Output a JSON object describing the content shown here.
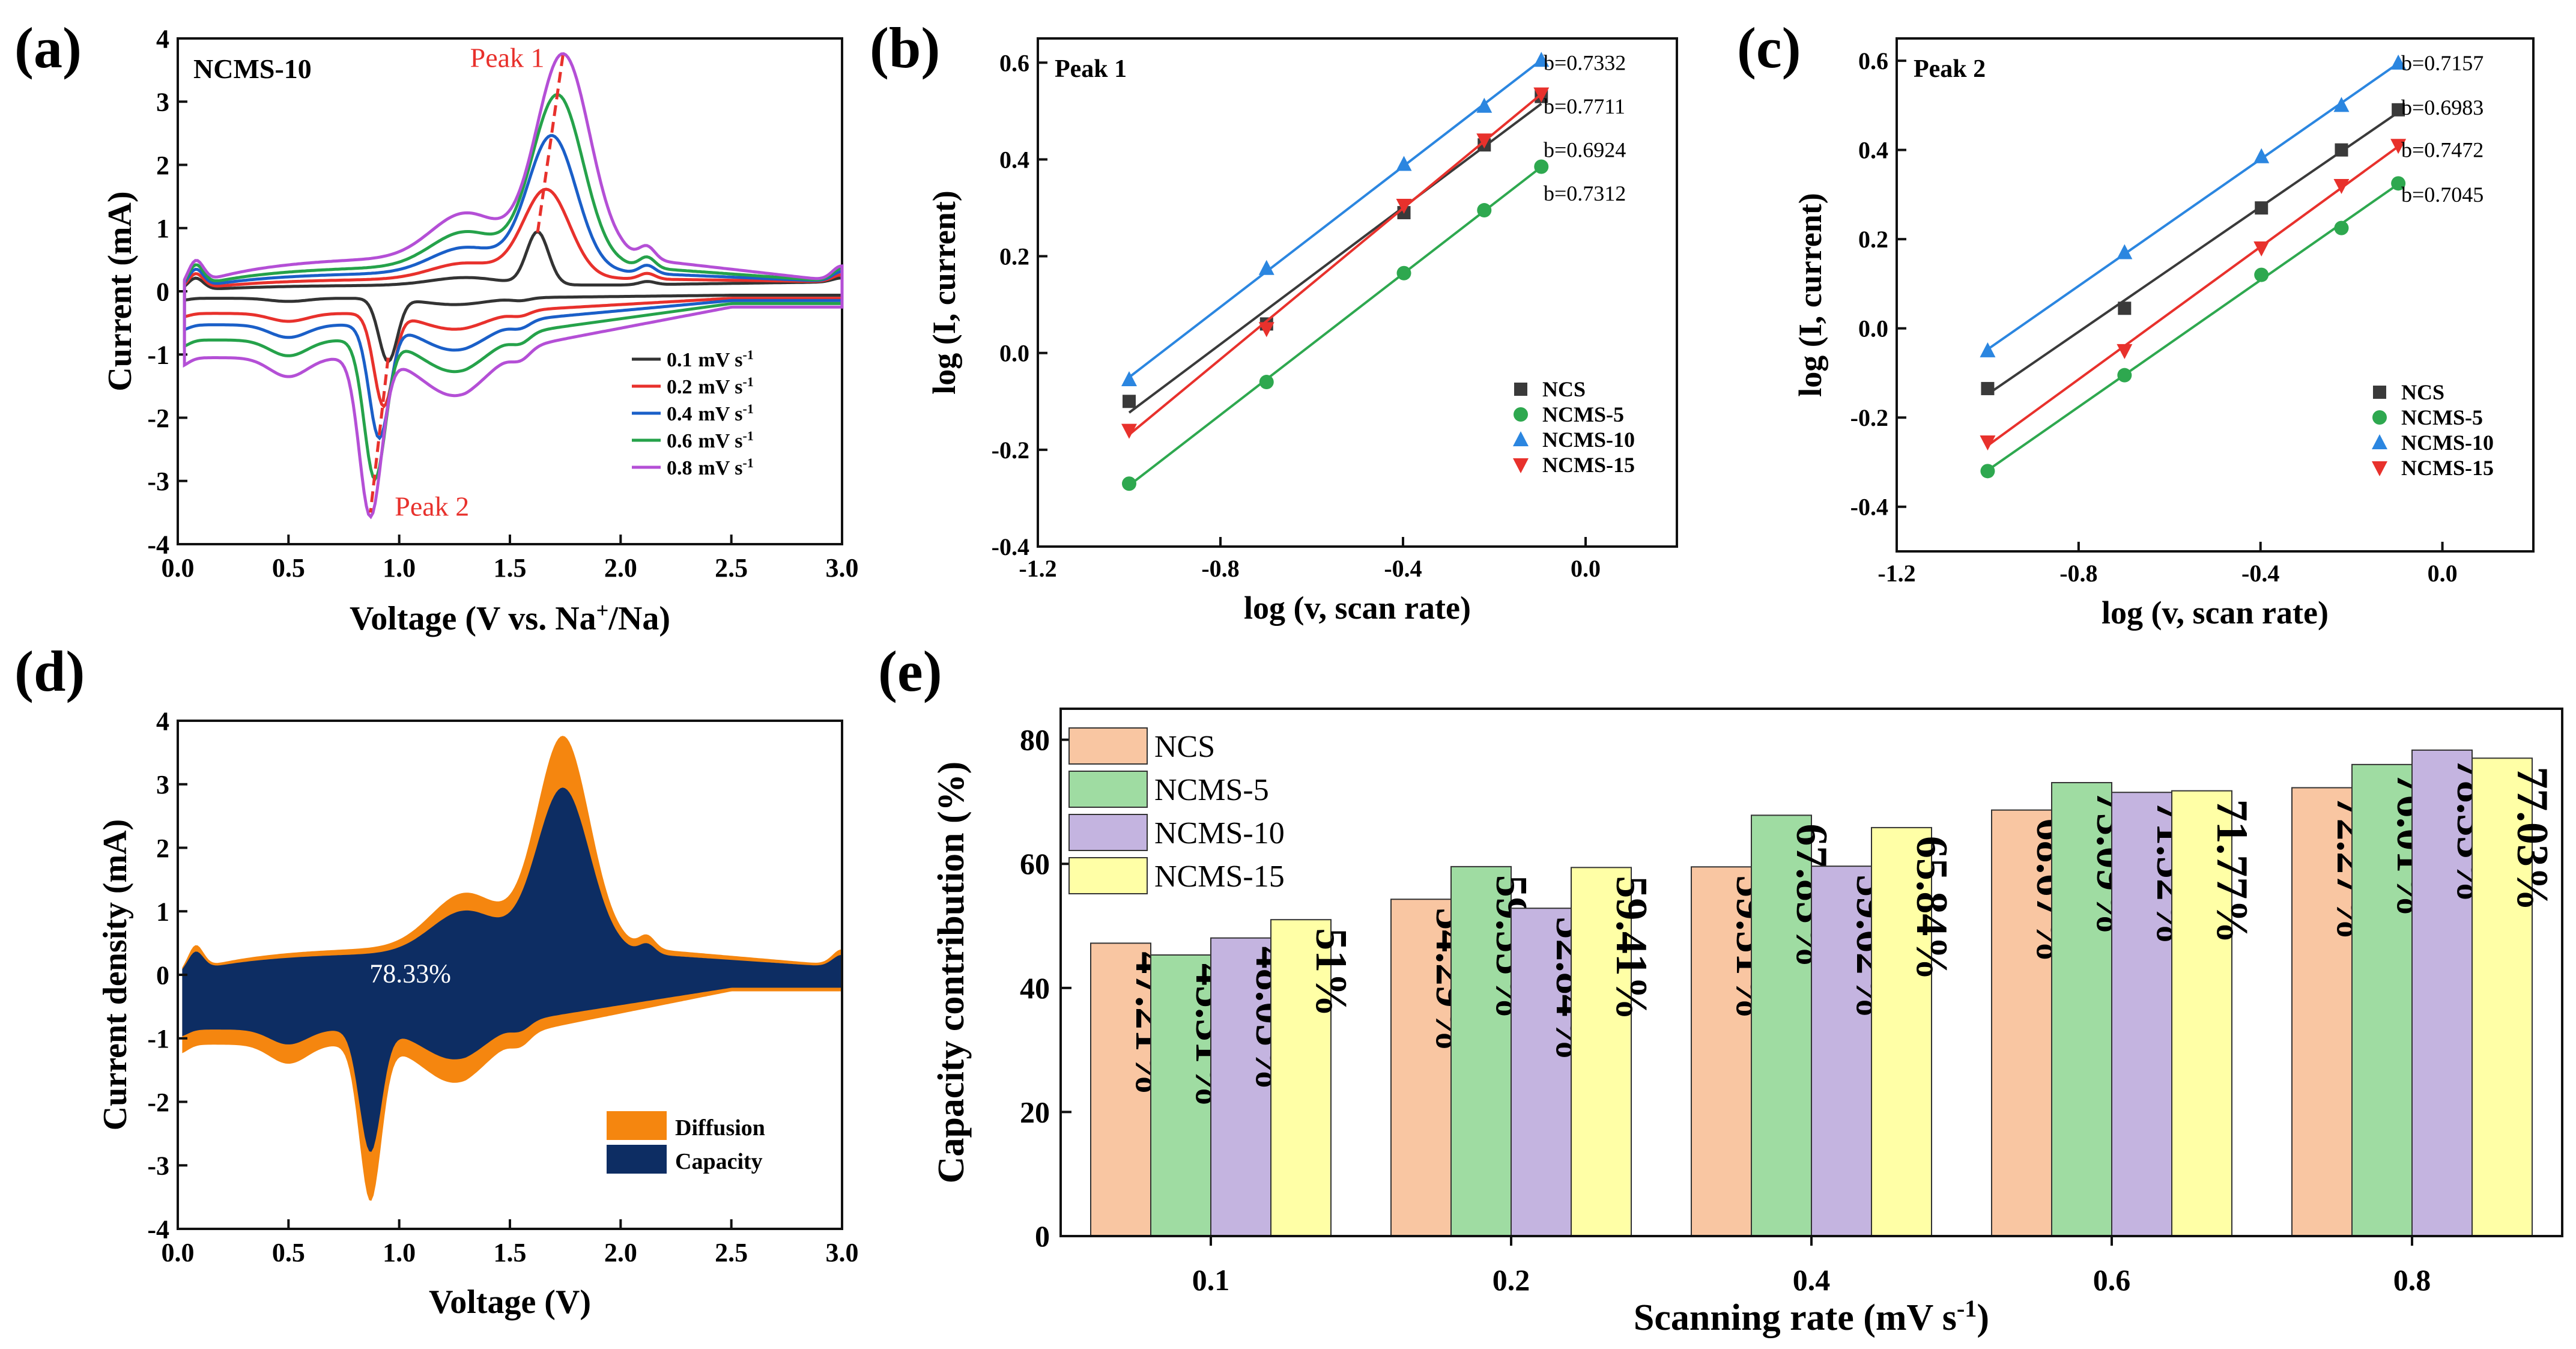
{
  "chart_data": [
    {
      "id": "a",
      "type": "line",
      "panel_label": "(a)",
      "sample": "NCMS-10",
      "xlabel": "Voltage (V vs. Na",
      "xlabel_sup": "+",
      "xlabel_tail": "/Na)",
      "ylabel": "Current (mA)",
      "xlim": [
        0.0,
        3.0
      ],
      "ylim": [
        -4,
        4
      ],
      "xticks": [
        0.0,
        0.5,
        1.0,
        1.5,
        2.0,
        2.5,
        3.0
      ],
      "yticks": [
        -4,
        -3,
        -2,
        -1,
        0,
        1,
        2,
        3,
        4
      ],
      "xtick_labels": [
        "0.0",
        "0.5",
        "1.0",
        "1.5",
        "2.0",
        "2.5",
        "3.0"
      ],
      "ytick_labels": [
        "-4",
        "-3",
        "-2",
        "-1",
        "0",
        "1",
        "2",
        "3",
        "4"
      ],
      "annotations": [
        "Peak 1",
        "Peak 2"
      ],
      "legend_unit": "mV s",
      "legend_unit_sup": "-1",
      "series": [
        {
          "name": "0.1",
          "color": "#333333",
          "ox": 1.625,
          "oy": 0.93,
          "rx": 0.95,
          "ry": -1.05,
          "base_up": 0.1,
          "base_dn": -0.06,
          "shoulder_up": 0.12,
          "shoulder_dn": -0.1,
          "k": 0.25
        },
        {
          "name": "0.2",
          "color": "#e8312c",
          "ox": 1.665,
          "oy": 1.6,
          "rx": 0.93,
          "ry": -1.75,
          "base_up": 0.2,
          "base_dn": -0.3,
          "shoulder_up": 0.25,
          "shoulder_dn": -0.25,
          "k": 0.45
        },
        {
          "name": "0.4",
          "color": "#1a5fc8",
          "ox": 1.69,
          "oy": 2.45,
          "rx": 0.91,
          "ry": -2.25,
          "base_up": 0.3,
          "base_dn": -0.48,
          "shoulder_up": 0.4,
          "shoulder_dn": -0.4,
          "k": 0.65
        },
        {
          "name": "0.6",
          "color": "#25a24a",
          "ox": 1.715,
          "oy": 3.1,
          "rx": 0.89,
          "ry": -2.9,
          "base_up": 0.4,
          "base_dn": -0.72,
          "shoulder_up": 0.55,
          "shoulder_dn": -0.5,
          "k": 0.85
        },
        {
          "name": "0.8",
          "color": "#b44fd6",
          "ox": 1.74,
          "oy": 3.75,
          "rx": 0.87,
          "ry": -3.5,
          "base_up": 0.55,
          "base_dn": -1.0,
          "shoulder_up": 0.7,
          "shoulder_dn": -0.6,
          "k": 1.0
        }
      ]
    },
    {
      "id": "b",
      "type": "scatter",
      "panel_label": "(b)",
      "inset_title": "Peak 1",
      "xlabel": "log (v, scan rate)",
      "ylabel": "log (I, current)",
      "xlim": [
        -1.2,
        0.2
      ],
      "ylim": [
        -0.4,
        0.65
      ],
      "xticks": [
        -1.2,
        -0.8,
        -0.4,
        0.0
      ],
      "yticks": [
        -0.4,
        -0.2,
        0.0,
        0.2,
        0.4,
        0.6
      ],
      "xtick_labels": [
        "-1.2",
        "-0.8",
        "-0.4",
        "0.0"
      ],
      "ytick_labels": [
        "-0.4",
        "-0.2",
        "0.0",
        "0.2",
        "0.4",
        "0.6"
      ],
      "x": [
        -1.0,
        -0.699,
        -0.398,
        -0.222,
        -0.097
      ],
      "series": [
        {
          "name": "NCS",
          "marker": "square",
          "color": "#3a3a3a",
          "values": [
            -0.1,
            0.06,
            0.29,
            0.43,
            0.53
          ]
        },
        {
          "name": "NCMS-5",
          "marker": "circle",
          "color": "#2ea84f",
          "values": [
            -0.27,
            -0.06,
            0.165,
            0.295,
            0.385
          ]
        },
        {
          "name": "NCMS-10",
          "marker": "triangle-up",
          "color": "#2b86e0",
          "values": [
            -0.055,
            0.175,
            0.39,
            0.51,
            0.605
          ]
        },
        {
          "name": "NCMS-15",
          "marker": "triangle-down",
          "color": "#e8312c",
          "values": [
            -0.16,
            0.05,
            0.305,
            0.44,
            0.535
          ]
        }
      ],
      "b_values": [
        "b=0.7332",
        "b=0.7711",
        "b=0.6924",
        "b=0.7312"
      ],
      "b_text_y": [
        0.6,
        0.51,
        0.42,
        0.33
      ]
    },
    {
      "id": "c",
      "type": "scatter",
      "panel_label": "(c)",
      "inset_title": "Peak 2",
      "xlabel": "log (v, scan rate)",
      "ylabel": "log (I, current)",
      "xlim": [
        -1.2,
        0.2
      ],
      "ylim": [
        -0.5,
        0.65
      ],
      "xticks": [
        -1.2,
        -0.8,
        -0.4,
        0.0
      ],
      "yticks": [
        -0.4,
        -0.2,
        0.0,
        0.2,
        0.4,
        0.6
      ],
      "xtick_labels": [
        "-1.2",
        "-0.8",
        "-0.4",
        "0.0"
      ],
      "ytick_labels": [
        "-0.4",
        "-0.2",
        "0.0",
        "0.2",
        "0.4",
        "0.6"
      ],
      "x": [
        -1.0,
        -0.699,
        -0.398,
        -0.222,
        -0.097
      ],
      "series": [
        {
          "name": "NCS",
          "marker": "square",
          "color": "#3a3a3a",
          "values": [
            -0.135,
            0.045,
            0.27,
            0.4,
            0.49
          ]
        },
        {
          "name": "NCMS-5",
          "marker": "circle",
          "color": "#2ea84f",
          "values": [
            -0.32,
            -0.105,
            0.12,
            0.225,
            0.325
          ]
        },
        {
          "name": "NCMS-10",
          "marker": "triangle-up",
          "color": "#2b86e0",
          "values": [
            -0.05,
            0.17,
            0.385,
            0.5,
            0.595
          ]
        },
        {
          "name": "NCMS-15",
          "marker": "triangle-down",
          "color": "#e8312c",
          "values": [
            -0.255,
            -0.05,
            0.18,
            0.32,
            0.41
          ]
        }
      ],
      "b_values": [
        "b=0.7157",
        "b=0.6983",
        "b=0.7472",
        "b=0.7045"
      ],
      "b_text_y": [
        0.595,
        0.495,
        0.4,
        0.3
      ]
    },
    {
      "id": "d",
      "type": "area",
      "panel_label": "(d)",
      "xlabel": "Voltage (V)",
      "ylabel": "Current density (mA)",
      "xlim": [
        0.0,
        3.0
      ],
      "ylim": [
        -4,
        4
      ],
      "xticks": [
        0.0,
        0.5,
        1.0,
        1.5,
        2.0,
        2.5,
        3.0
      ],
      "yticks": [
        -4,
        -3,
        -2,
        -1,
        0,
        1,
        2,
        3,
        4
      ],
      "xtick_labels": [
        "0.0",
        "0.5",
        "1.0",
        "1.5",
        "2.0",
        "2.5",
        "3.0"
      ],
      "ytick_labels": [
        "-4",
        "-3",
        "-2",
        "-1",
        "0",
        "1",
        "2",
        "3",
        "4"
      ],
      "annotation": "78.33%",
      "series": [
        {
          "name": "Diffusion",
          "color": "#f5860f",
          "scale": 1.0
        },
        {
          "name": "Capacity",
          "color": "#0d2d63",
          "scale": 0.7833
        }
      ],
      "outline": {
        "ox": 1.74,
        "oy": 3.75,
        "rx": 0.87,
        "ry": -3.5,
        "base_up": 0.45,
        "base_dn": -1.05,
        "shoulder_up": 0.85,
        "shoulder_dn": -0.6
      }
    },
    {
      "id": "e",
      "type": "bar",
      "panel_label": "(e)",
      "xlabel": "Scanning rate (mV s",
      "xlabel_sup": "-1",
      "xlabel_tail": ")",
      "ylabel": "Capacity contribution (%)",
      "ylim": [
        0,
        85
      ],
      "yticks": [
        0,
        20,
        40,
        60,
        80
      ],
      "ytick_labels": [
        "0",
        "20",
        "40",
        "60",
        "80"
      ],
      "categories": [
        "0.1",
        "0.2",
        "0.4",
        "0.6",
        "0.8"
      ],
      "series": [
        {
          "name": "NCS",
          "color": "#f9c6a2",
          "values": [
            47.21,
            54.29,
            59.51,
            68.67,
            72.27
          ],
          "labels": [
            "47.21%",
            "54.29%",
            "59.51%",
            "68.67%",
            "72.27%"
          ]
        },
        {
          "name": "NCMS-5",
          "color": "#9fdca2",
          "values": [
            45.31,
            59.55,
            67.83,
            73.09,
            76.01
          ],
          "labels": [
            "45.31%",
            "59.55%",
            "67.83%",
            "73.09%",
            "76.01%"
          ]
        },
        {
          "name": "NCMS-10",
          "color": "#c4b4e0",
          "values": [
            48.05,
            52.84,
            59.62,
            71.52,
            78.33
          ],
          "labels": [
            "48.05%",
            "52.84%",
            "59.62%",
            "71.52%",
            "78.33%"
          ]
        },
        {
          "name": "NCMS-15",
          "color": "#ffffa6",
          "values": [
            51,
            59.41,
            65.84,
            71.77,
            77.03
          ],
          "labels": [
            "51%",
            "59.41%",
            "65.84%",
            "71.77%",
            "77.03%"
          ]
        }
      ]
    }
  ]
}
